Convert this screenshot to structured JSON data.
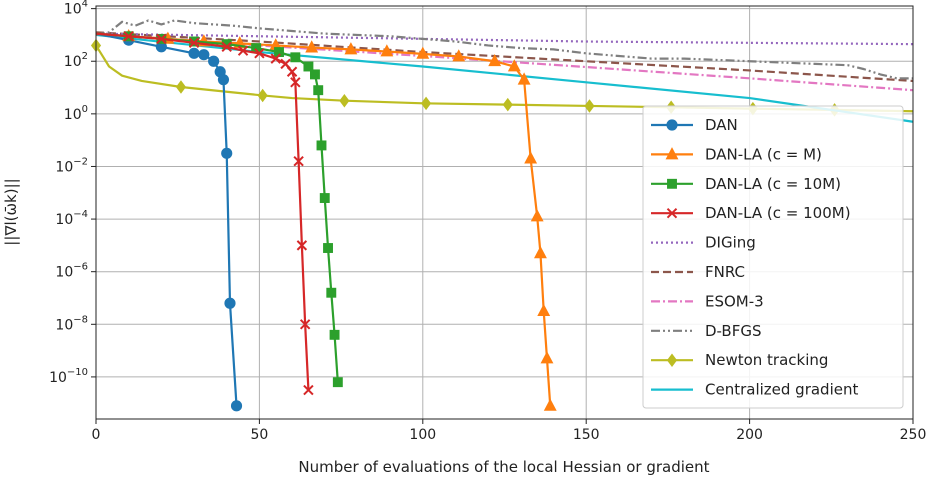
{
  "chart_data": {
    "type": "line",
    "title": "",
    "xlabel": "Number of evaluations of the local Hessian or gradient",
    "ylabel": "||∇l(ω̄k)||",
    "xlim": [
      0,
      250
    ],
    "ylim_log10": [
      -11.6,
      4.1
    ],
    "y_scale": "log",
    "x_ticks": [
      0,
      50,
      100,
      150,
      200,
      250
    ],
    "y_ticks": [
      {
        "exp": 4,
        "label": "10^4"
      },
      {
        "exp": 2,
        "label": "10^2"
      },
      {
        "exp": 0,
        "label": "10^0"
      },
      {
        "exp": -2,
        "label": "10^-2"
      },
      {
        "exp": -4,
        "label": "10^-4"
      },
      {
        "exp": -6,
        "label": "10^-6"
      },
      {
        "exp": -8,
        "label": "10^-8"
      },
      {
        "exp": -10,
        "label": "10^-10"
      }
    ],
    "grid": true,
    "legend_position": "right",
    "series": [
      {
        "name": "DAN",
        "color": "#1f77b4",
        "dash": "",
        "marker": "circle",
        "points": [
          [
            0,
            3.05
          ],
          [
            10,
            2.8
          ],
          [
            20,
            2.55
          ],
          [
            30,
            2.3
          ],
          [
            33,
            2.25
          ],
          [
            36,
            2.0
          ],
          [
            38,
            1.6
          ],
          [
            39,
            1.3
          ],
          [
            40,
            -1.5
          ],
          [
            41,
            -7.2
          ],
          [
            43,
            -11.1
          ]
        ]
      },
      {
        "name": "DAN-LA (c = M)",
        "color": "#ff7f0e",
        "dash": "",
        "marker": "triangle",
        "points": [
          [
            0,
            3.05
          ],
          [
            10,
            2.95
          ],
          [
            22,
            2.85
          ],
          [
            33,
            2.75
          ],
          [
            44,
            2.68
          ],
          [
            55,
            2.6
          ],
          [
            66,
            2.52
          ],
          [
            78,
            2.45
          ],
          [
            89,
            2.37
          ],
          [
            100,
            2.28
          ],
          [
            111,
            2.18
          ],
          [
            122,
            2.0
          ],
          [
            128,
            1.8
          ],
          [
            131,
            1.3
          ],
          [
            133,
            -1.7
          ],
          [
            135,
            -3.9
          ],
          [
            136,
            -5.3
          ],
          [
            137,
            -7.5
          ],
          [
            138,
            -9.3
          ],
          [
            139,
            -11.1
          ]
        ]
      },
      {
        "name": "DAN-LA (c = 10M)",
        "color": "#2ca02c",
        "dash": "",
        "marker": "square",
        "points": [
          [
            0,
            3.05
          ],
          [
            10,
            2.95
          ],
          [
            20,
            2.85
          ],
          [
            30,
            2.75
          ],
          [
            40,
            2.65
          ],
          [
            49,
            2.5
          ],
          [
            56,
            2.35
          ],
          [
            61,
            2.15
          ],
          [
            65,
            1.8
          ],
          [
            67,
            1.5
          ],
          [
            68,
            0.9
          ],
          [
            69,
            -1.2
          ],
          [
            70,
            -3.2
          ],
          [
            71,
            -5.1
          ],
          [
            72,
            -6.8
          ],
          [
            73,
            -8.4
          ],
          [
            74,
            -10.2
          ]
        ]
      },
      {
        "name": "DAN-LA (c = 100M)",
        "color": "#d62728",
        "dash": "",
        "marker": "x",
        "points": [
          [
            0,
            3.05
          ],
          [
            10,
            2.95
          ],
          [
            20,
            2.85
          ],
          [
            30,
            2.7
          ],
          [
            40,
            2.55
          ],
          [
            45,
            2.4
          ],
          [
            50,
            2.3
          ],
          [
            55,
            2.1
          ],
          [
            58,
            1.9
          ],
          [
            60,
            1.6
          ],
          [
            61,
            1.2
          ],
          [
            62,
            -1.8
          ],
          [
            63,
            -5.0
          ],
          [
            64,
            -8.0
          ],
          [
            65,
            -10.5
          ]
        ]
      },
      {
        "name": "DIGing",
        "color": "#9467bd",
        "dash": "2,3",
        "marker": "",
        "points": [
          [
            0,
            3.05
          ],
          [
            50,
            2.95
          ],
          [
            100,
            2.85
          ],
          [
            150,
            2.75
          ],
          [
            200,
            2.7
          ],
          [
            250,
            2.65
          ]
        ]
      },
      {
        "name": "FNRC",
        "color": "#8c564b",
        "dash": "8,4",
        "marker": "",
        "points": [
          [
            0,
            3.1
          ],
          [
            50,
            2.75
          ],
          [
            100,
            2.35
          ],
          [
            150,
            2.0
          ],
          [
            200,
            1.65
          ],
          [
            250,
            1.25
          ]
        ]
      },
      {
        "name": "ESOM-3",
        "color": "#e377c2",
        "dash": "9,3,2,3",
        "marker": "",
        "points": [
          [
            0,
            3.05
          ],
          [
            50,
            2.6
          ],
          [
            100,
            2.2
          ],
          [
            150,
            1.78
          ],
          [
            200,
            1.35
          ],
          [
            250,
            0.9
          ]
        ]
      },
      {
        "name": "D-BFGS",
        "color": "#7f7f7f",
        "dash": "9,3,2,3,2,3",
        "marker": "",
        "points": [
          [
            0,
            3.0
          ],
          [
            4,
            3.1
          ],
          [
            8,
            3.5
          ],
          [
            12,
            3.35
          ],
          [
            16,
            3.55
          ],
          [
            20,
            3.4
          ],
          [
            24,
            3.55
          ],
          [
            30,
            3.45
          ],
          [
            36,
            3.4
          ],
          [
            42,
            3.35
          ],
          [
            50,
            3.25
          ],
          [
            60,
            3.15
          ],
          [
            70,
            3.05
          ],
          [
            80,
            3.0
          ],
          [
            90,
            2.95
          ],
          [
            100,
            2.85
          ],
          [
            110,
            2.75
          ],
          [
            120,
            2.6
          ],
          [
            130,
            2.5
          ],
          [
            140,
            2.45
          ],
          [
            150,
            2.3
          ],
          [
            160,
            2.2
          ],
          [
            170,
            2.1
          ],
          [
            180,
            2.1
          ],
          [
            190,
            2.05
          ],
          [
            200,
            2.0
          ],
          [
            210,
            1.95
          ],
          [
            220,
            1.9
          ],
          [
            230,
            1.85
          ],
          [
            235,
            1.7
          ],
          [
            240,
            1.5
          ],
          [
            245,
            1.35
          ],
          [
            250,
            1.35
          ]
        ]
      },
      {
        "name": "Newton tracking",
        "color": "#bcbd22",
        "dash": "",
        "marker": "diamond",
        "points": [
          [
            0,
            2.6
          ],
          [
            2,
            2.2
          ],
          [
            4,
            1.8
          ],
          [
            8,
            1.45
          ],
          [
            14,
            1.25
          ],
          [
            26,
            1.02
          ],
          [
            40,
            0.84
          ],
          [
            51,
            0.7
          ],
          [
            60,
            0.6
          ],
          [
            76,
            0.5
          ],
          [
            100,
            0.4
          ],
          [
            126,
            0.35
          ],
          [
            151,
            0.3
          ],
          [
            176,
            0.25
          ],
          [
            200,
            0.2
          ],
          [
            225,
            0.15
          ],
          [
            250,
            0.1
          ]
        ],
        "marker_points": [
          [
            0,
            2.6
          ],
          [
            26,
            1.02
          ],
          [
            51,
            0.7
          ],
          [
            76,
            0.5
          ],
          [
            101,
            0.4
          ],
          [
            126,
            0.35
          ],
          [
            151,
            0.3
          ],
          [
            176,
            0.25
          ],
          [
            201,
            0.2
          ],
          [
            226,
            0.15
          ]
        ]
      },
      {
        "name": "Centralized gradient",
        "color": "#17becf",
        "dash": "",
        "marker": "",
        "points": [
          [
            0,
            3.0
          ],
          [
            50,
            2.35
          ],
          [
            100,
            1.8
          ],
          [
            150,
            1.2
          ],
          [
            200,
            0.6
          ],
          [
            250,
            -0.3
          ]
        ]
      }
    ],
    "legend_labels": [
      {
        "text": "DAN"
      },
      {
        "text": "DAN-LA (c = M)"
      },
      {
        "text": "DAN-LA (c = 10M)"
      },
      {
        "text": "DAN-LA (c = 100M)"
      },
      {
        "text": "DIGing"
      },
      {
        "text": "FNRC"
      },
      {
        "text": "ESOM-3"
      },
      {
        "text": "D-BFGS"
      },
      {
        "text": "Newton tracking"
      },
      {
        "text": "Centralized gradient"
      }
    ]
  }
}
